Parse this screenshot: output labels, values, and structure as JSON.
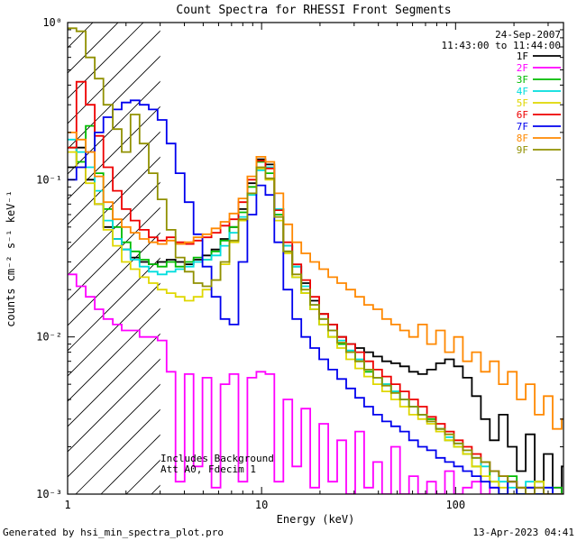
{
  "title": "Count Spectra for RHESSI Front Segments",
  "annotations": {
    "date": "24-Sep-2007",
    "time_range": "11:43:00 to 11:44:00",
    "includes_background": "Includes Background",
    "att_line": "Att A0, Fdecim 1"
  },
  "footer": {
    "generated_by": "Generated by hsi_min_spectra_plot.pro",
    "timestamp": "13-Apr-2023 04:41"
  },
  "chart_data": {
    "type": "line",
    "step": true,
    "x_scale": "log",
    "y_scale": "log",
    "title": "Count Spectra for RHESSI Front Segments",
    "xlabel": "Energy (keV)",
    "ylabel": "counts cm⁻² s⁻¹ keV⁻¹",
    "xlim": [
      1,
      360
    ],
    "ylim": [
      0.001,
      1
    ],
    "grid": false,
    "legend_position": "top-right",
    "hatch_region": {
      "from": 1,
      "to": 3
    },
    "x_ticks": [
      {
        "v": 1,
        "label": "1"
      },
      {
        "v": 10,
        "label": "10"
      },
      {
        "v": 100,
        "label": "100"
      }
    ],
    "y_ticks": [
      {
        "v": 1,
        "label": "10⁰"
      },
      {
        "v": 0.1,
        "label": "10⁻¹"
      },
      {
        "v": 0.01,
        "label": "10⁻²"
      },
      {
        "v": 0.001,
        "label": "10⁻³"
      }
    ],
    "x": [
      1.0,
      1.11,
      1.24,
      1.38,
      1.53,
      1.71,
      1.9,
      2.11,
      2.35,
      2.62,
      2.91,
      3.24,
      3.6,
      4.01,
      4.46,
      4.96,
      5.52,
      6.14,
      6.83,
      7.6,
      8.45,
      9.4,
      10.46,
      11.64,
      12.95,
      14.4,
      16.02,
      17.82,
      19.83,
      22.06,
      24.54,
      27.3,
      30.37,
      33.78,
      37.58,
      41.81,
      46.51,
      51.74,
      57.56,
      64.03,
      71.23,
      79.24,
      88.15,
      98.06,
      109.1,
      121.4,
      135.0,
      150.2,
      167.1,
      185.9,
      206.8,
      230.0,
      255.9,
      284.7,
      316.7,
      352.3
    ],
    "series": [
      {
        "name": "1F",
        "color": "#000000",
        "values": [
          0.12,
          0.16,
          0.1,
          0.07,
          0.05,
          0.042,
          0.036,
          0.032,
          0.03,
          0.029,
          0.03,
          0.031,
          0.03,
          0.029,
          0.031,
          0.033,
          0.036,
          0.042,
          0.05,
          0.065,
          0.095,
          0.135,
          0.125,
          0.065,
          0.038,
          0.028,
          0.022,
          0.017,
          0.014,
          0.012,
          0.01,
          0.009,
          0.0085,
          0.008,
          0.0075,
          0.007,
          0.0068,
          0.0065,
          0.006,
          0.0058,
          0.0062,
          0.0068,
          0.0072,
          0.0065,
          0.0055,
          0.0042,
          0.003,
          0.0022,
          0.0032,
          0.002,
          0.0014,
          0.0024,
          0.0012,
          0.0018,
          0.001,
          0.0015
        ]
      },
      {
        "name": "2F",
        "color": "#ff00ff",
        "values": [
          0.025,
          0.021,
          0.018,
          0.015,
          0.013,
          0.012,
          0.011,
          0.011,
          0.01,
          0.01,
          0.0095,
          0.006,
          0.0012,
          0.0058,
          0.0015,
          0.0055,
          0.0011,
          0.005,
          0.0058,
          0.0012,
          0.0055,
          0.006,
          0.0058,
          0.0012,
          0.004,
          0.0015,
          0.0035,
          0.0011,
          0.0028,
          0.0012,
          0.0022,
          0.001,
          0.0025,
          0.0011,
          0.0016,
          0.001,
          0.002,
          0.001,
          0.0013,
          0.001,
          0.0012,
          0.001,
          0.0014,
          0.001,
          0.0011,
          0.0012,
          0.001,
          0.0011,
          0.001,
          0.0012,
          0.001,
          0.0011,
          0.001,
          0.001,
          0.0011,
          0.001
        ]
      },
      {
        "name": "3F",
        "color": "#00bb00",
        "values": [
          0.16,
          0.13,
          0.22,
          0.11,
          0.065,
          0.05,
          0.04,
          0.035,
          0.031,
          0.029,
          0.028,
          0.03,
          0.028,
          0.03,
          0.032,
          0.031,
          0.035,
          0.041,
          0.05,
          0.062,
          0.09,
          0.13,
          0.11,
          0.06,
          0.035,
          0.024,
          0.019,
          0.015,
          0.012,
          0.01,
          0.009,
          0.008,
          0.007,
          0.006,
          0.0055,
          0.005,
          0.0045,
          0.004,
          0.0036,
          0.0032,
          0.003,
          0.0026,
          0.0022,
          0.002,
          0.0018,
          0.0015,
          0.0016,
          0.0012,
          0.001,
          0.0013,
          0.001,
          0.0011,
          0.0012,
          0.001,
          0.0011,
          0.001
        ]
      },
      {
        "name": "4F",
        "color": "#00dddd",
        "values": [
          0.18,
          0.15,
          0.12,
          0.085,
          0.055,
          0.042,
          0.036,
          0.031,
          0.028,
          0.026,
          0.025,
          0.026,
          0.027,
          0.028,
          0.03,
          0.031,
          0.033,
          0.038,
          0.046,
          0.058,
          0.08,
          0.115,
          0.12,
          0.065,
          0.038,
          0.028,
          0.021,
          0.016,
          0.013,
          0.011,
          0.0095,
          0.0082,
          0.0072,
          0.0062,
          0.0055,
          0.005,
          0.0045,
          0.004,
          0.0036,
          0.0032,
          0.0029,
          0.0026,
          0.0023,
          0.0021,
          0.0019,
          0.0017,
          0.0015,
          0.0014,
          0.0012,
          0.0011,
          0.001,
          0.0012,
          0.001,
          0.0011,
          0.001,
          0.001
        ]
      },
      {
        "name": "5F",
        "color": "#dfd700",
        "values": [
          0.15,
          0.12,
          0.095,
          0.07,
          0.048,
          0.038,
          0.03,
          0.027,
          0.024,
          0.022,
          0.02,
          0.019,
          0.018,
          0.017,
          0.018,
          0.02,
          0.023,
          0.029,
          0.04,
          0.055,
          0.082,
          0.118,
          0.1,
          0.055,
          0.034,
          0.024,
          0.019,
          0.015,
          0.012,
          0.01,
          0.0085,
          0.0072,
          0.0063,
          0.0056,
          0.005,
          0.0045,
          0.004,
          0.0036,
          0.0032,
          0.003,
          0.0028,
          0.0025,
          0.0022,
          0.002,
          0.0018,
          0.0015,
          0.0013,
          0.0012,
          0.0011,
          0.001,
          0.0011,
          0.001,
          0.0012,
          0.001,
          0.001,
          0.001
        ]
      },
      {
        "name": "6F",
        "color": "#ee0000",
        "values": [
          0.16,
          0.42,
          0.3,
          0.19,
          0.12,
          0.085,
          0.065,
          0.055,
          0.048,
          0.043,
          0.041,
          0.043,
          0.04,
          0.039,
          0.041,
          0.043,
          0.046,
          0.051,
          0.056,
          0.072,
          0.1,
          0.132,
          0.118,
          0.064,
          0.04,
          0.029,
          0.023,
          0.018,
          0.014,
          0.012,
          0.01,
          0.009,
          0.008,
          0.007,
          0.0062,
          0.0056,
          0.005,
          0.0045,
          0.004,
          0.0036,
          0.0031,
          0.0028,
          0.0025,
          0.0022,
          0.002,
          0.0018,
          0.0016,
          0.0014,
          0.0013,
          0.0012,
          0.0011,
          0.001,
          0.0011,
          0.001,
          0.001,
          0.001
        ]
      },
      {
        "name": "7F",
        "color": "#0000ee",
        "values": [
          0.1,
          0.12,
          0.15,
          0.2,
          0.25,
          0.28,
          0.31,
          0.32,
          0.3,
          0.28,
          0.24,
          0.17,
          0.11,
          0.072,
          0.045,
          0.028,
          0.018,
          0.013,
          0.012,
          0.03,
          0.06,
          0.092,
          0.08,
          0.04,
          0.02,
          0.013,
          0.01,
          0.0085,
          0.0072,
          0.0062,
          0.0054,
          0.0047,
          0.0041,
          0.0036,
          0.0032,
          0.0029,
          0.0027,
          0.0025,
          0.0022,
          0.002,
          0.0019,
          0.0017,
          0.0016,
          0.0015,
          0.0014,
          0.0013,
          0.0012,
          0.0011,
          0.001,
          0.0012,
          0.001,
          0.0011,
          0.001,
          0.0011,
          0.001,
          0.001
        ]
      },
      {
        "name": "8F",
        "color": "#ff8800",
        "values": [
          0.2,
          0.18,
          0.15,
          0.105,
          0.072,
          0.056,
          0.05,
          0.046,
          0.042,
          0.04,
          0.039,
          0.041,
          0.039,
          0.04,
          0.043,
          0.045,
          0.049,
          0.054,
          0.061,
          0.076,
          0.105,
          0.14,
          0.13,
          0.082,
          0.052,
          0.04,
          0.034,
          0.03,
          0.027,
          0.024,
          0.022,
          0.02,
          0.018,
          0.016,
          0.015,
          0.013,
          0.012,
          0.011,
          0.01,
          0.012,
          0.009,
          0.011,
          0.008,
          0.01,
          0.007,
          0.008,
          0.006,
          0.007,
          0.005,
          0.006,
          0.004,
          0.005,
          0.0032,
          0.0042,
          0.0026,
          0.003
        ]
      },
      {
        "name": "9F",
        "color": "#909000",
        "values": [
          0.92,
          0.88,
          0.6,
          0.44,
          0.3,
          0.21,
          0.15,
          0.26,
          0.17,
          0.11,
          0.075,
          0.048,
          0.032,
          0.026,
          0.022,
          0.021,
          0.023,
          0.03,
          0.041,
          0.056,
          0.082,
          0.12,
          0.102,
          0.058,
          0.035,
          0.025,
          0.02,
          0.016,
          0.013,
          0.011,
          0.0092,
          0.008,
          0.007,
          0.0062,
          0.0055,
          0.0049,
          0.0044,
          0.004,
          0.0036,
          0.0032,
          0.0029,
          0.0026,
          0.0024,
          0.0021,
          0.0019,
          0.0017,
          0.0016,
          0.0014,
          0.0013,
          0.0012,
          0.0011,
          0.001,
          0.0011,
          0.001,
          0.001,
          0.001
        ]
      }
    ]
  }
}
